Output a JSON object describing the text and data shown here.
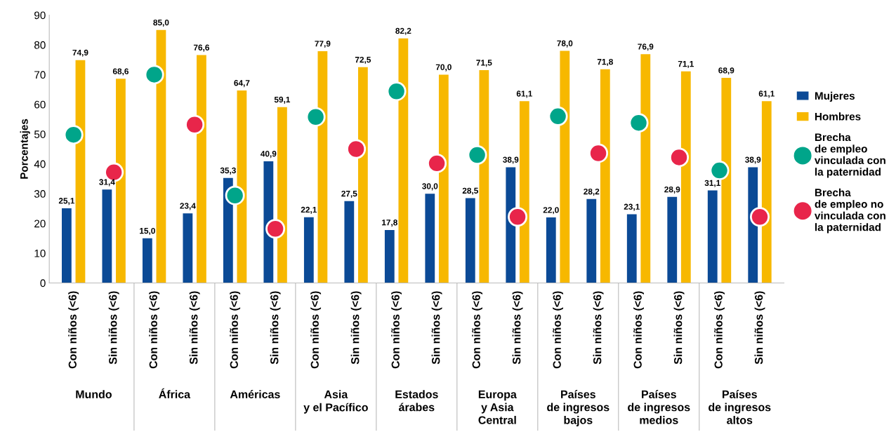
{
  "chart_data": {
    "type": "bar",
    "ylabel": "Porcentajes",
    "ylim": [
      0,
      90
    ],
    "yticks": [
      0,
      10,
      20,
      30,
      40,
      50,
      60,
      70,
      80,
      90
    ],
    "grid": false,
    "legend": "right",
    "categories": [
      "Con niños (<6)",
      "Sin niños (<6)",
      "Con niños (<6)",
      "Sin niños (<6)",
      "Con niños (<6)",
      "Sin niños (<6)",
      "Con niños (<6)",
      "Sin niños (<6)",
      "Con niños (<6)",
      "Sin niños (<6)",
      "Con niños (<6)",
      "Sin niños (<6)",
      "Con niños (<6)",
      "Sin niños (<6)",
      "Con niños (<6)",
      "Sin niños (<6)",
      "Con niños (<6)",
      "Sin niños (<6)"
    ],
    "annotations": [
      "Mundo",
      "África",
      "Américas",
      "Asia\ny el Pacífico",
      "Estados\nárabes",
      "Europa\ny Asia\nCentral",
      "Países\nde ingresos\nbajos",
      "Países\nde ingresos\nmedios",
      "Países\nde ingresos\naltos"
    ],
    "series": [
      {
        "name": "Mujeres",
        "color": "#0b4a96",
        "values": [
          25.1,
          31.4,
          15.0,
          23.4,
          35.3,
          40.9,
          22.1,
          27.5,
          17.8,
          30.0,
          28.5,
          38.9,
          22.0,
          28.2,
          23.1,
          28.9,
          31.1,
          38.9
        ],
        "value_labels": [
          "25,1",
          "31,4",
          "15,0",
          "23,4",
          "35,3",
          "40,9",
          "22,1",
          "27,5",
          "17,8",
          "30,0",
          "28,5",
          "38,9",
          "22,0",
          "28,2",
          "23,1",
          "28,9",
          "31,1",
          "38,9"
        ]
      },
      {
        "name": "Hombres",
        "color": "#f7b800",
        "values": [
          74.9,
          68.6,
          85.0,
          76.6,
          64.7,
          59.1,
          77.9,
          72.5,
          82.2,
          70.0,
          71.5,
          61.1,
          78.0,
          71.8,
          76.9,
          71.1,
          68.9,
          61.1
        ],
        "value_labels": [
          "74,9",
          "68,6",
          "85,0",
          "76,6",
          "64,7",
          "59,1",
          "77,9",
          "72,5",
          "82,2",
          "70,0",
          "71,5",
          "61,1",
          "78,0",
          "71,8",
          "76,9",
          "71,1",
          "68,9",
          "61,1"
        ]
      },
      {
        "name": "Brecha\nde empleo\nvinculada con\nla paternidad",
        "type": "scatter",
        "color": "#00a58a",
        "values": [
          49.8,
          null,
          70.0,
          null,
          29.4,
          null,
          55.8,
          null,
          64.4,
          null,
          43.0,
          null,
          56.0,
          null,
          53.8,
          null,
          37.8,
          null
        ]
      },
      {
        "name": "Brecha\nde empleo no\nvinculada con\nla paternidad",
        "type": "scatter",
        "color": "#e8254a",
        "values": [
          null,
          37.2,
          null,
          53.2,
          null,
          18.2,
          null,
          45.0,
          null,
          40.2,
          null,
          22.2,
          null,
          43.6,
          null,
          42.2,
          null,
          22.2
        ]
      }
    ]
  }
}
